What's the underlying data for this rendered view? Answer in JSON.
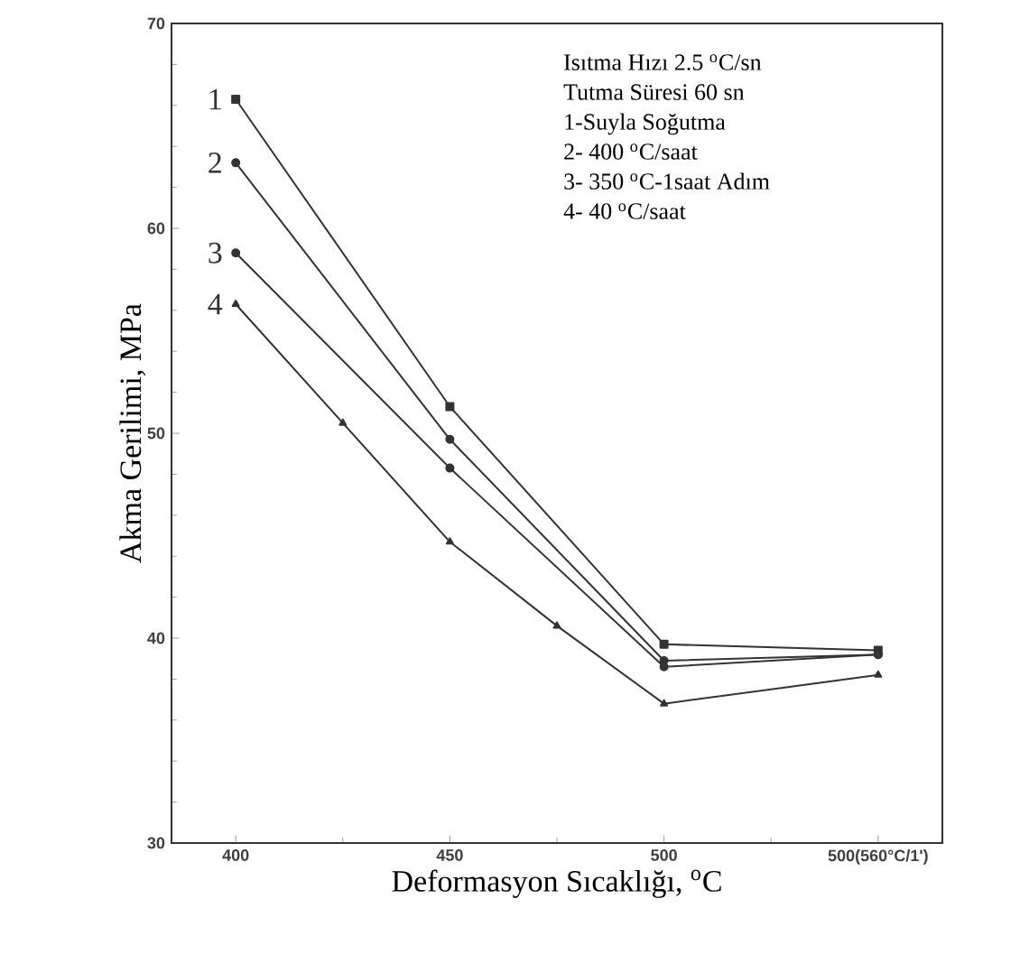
{
  "chart_data": {
    "type": "line",
    "xlabel": "Deformasyon Sıcaklığı, $^{o}$C",
    "ylabel": "Akma Gerilimi, MPa",
    "xlim": [
      385,
      565
    ],
    "xticks": [
      400,
      450,
      500,
      {
        "value": 550,
        "label": "500(560°C/1')"
      }
    ],
    "ylim": [
      30,
      70
    ],
    "yticks": [
      30,
      40,
      50,
      60,
      70
    ],
    "grid": false,
    "legend": false,
    "series": [
      {
        "name": "1",
        "color": "#333333",
        "marker": "square",
        "x": [
          400,
          450,
          500,
          550
        ],
        "values": [
          66.3,
          51.3,
          39.7,
          39.4
        ]
      },
      {
        "name": "2",
        "color": "#333333",
        "marker": "circle",
        "x": [
          400,
          450,
          500,
          550
        ],
        "values": [
          63.2,
          49.7,
          38.9,
          39.2
        ]
      },
      {
        "name": "3",
        "color": "#333333",
        "marker": "circle",
        "x": [
          400,
          450,
          500,
          550
        ],
        "values": [
          58.8,
          48.3,
          38.6,
          39.2
        ]
      },
      {
        "name": "4",
        "color": "#333333",
        "marker": "triangle",
        "x": [
          400,
          425,
          450,
          475,
          500,
          550
        ],
        "values": [
          56.3,
          50.5,
          44.7,
          40.6,
          36.8,
          38.2
        ]
      }
    ],
    "annotations": [
      "Isıtma Hızı 2.5 $^{o}$C/sn",
      "Tutma Süresi 60 sn",
      "1-Suyla Soğutma",
      "2- 400 $^{o}$C/saat",
      "3- 350 $^{o}$C-1saat Adım",
      "4- 40 $^{o}$C/saat"
    ]
  }
}
